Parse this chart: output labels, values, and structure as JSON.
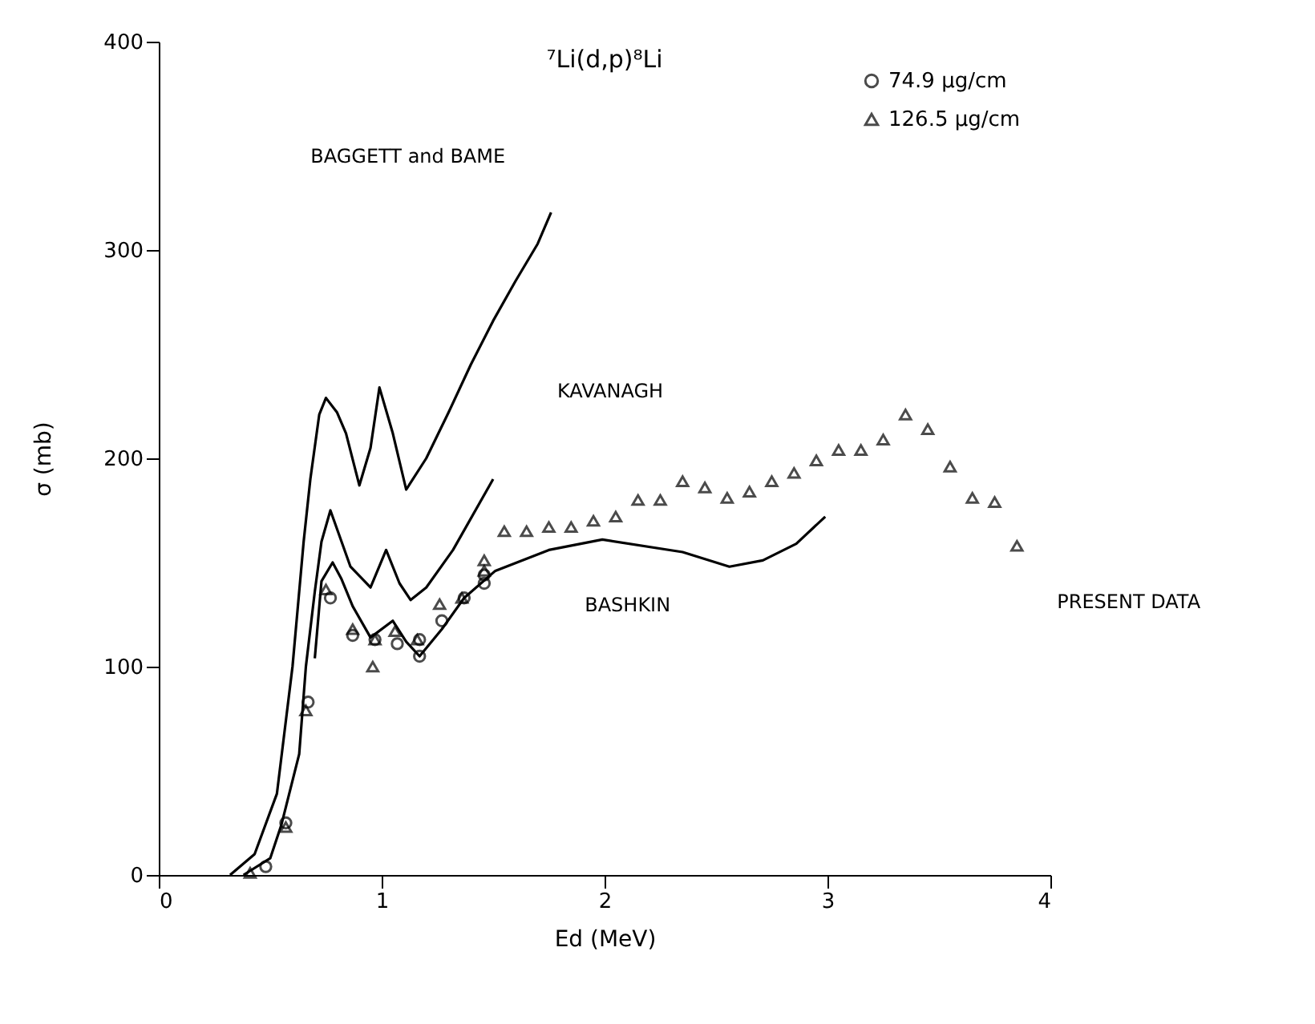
{
  "chart_data": {
    "type": "line",
    "title": "⁷Li(d,p)⁸Li",
    "xlabel": "Ed (MeV)",
    "ylabel": "σ (mb)",
    "xlim": [
      0,
      4
    ],
    "xticks": [
      0,
      1,
      2,
      3,
      4
    ],
    "ylim": [
      0,
      400
    ],
    "yticks": [
      0,
      100,
      200,
      300,
      400
    ],
    "grid": false,
    "legend": "top right",
    "series": [
      {
        "type": "line",
        "color": "#000000",
        "marker": "none",
        "x": [
          0.32,
          0.43,
          0.53,
          0.6,
          0.65,
          0.68,
          0.72,
          0.75,
          0.8,
          0.84,
          0.9,
          0.95,
          0.99,
          1.05,
          1.11,
          1.2,
          1.3,
          1.4,
          1.5,
          1.6,
          1.7,
          1.76
        ],
        "values": [
          0,
          10,
          39,
          100,
          160,
          190,
          221,
          229,
          222,
          212,
          187,
          205,
          234,
          212,
          185,
          200,
          222,
          245,
          266,
          285,
          303,
          318
        ]
      },
      {
        "type": "line",
        "color": "#000000",
        "marker": "none",
        "x": [
          0.38,
          0.5,
          0.55,
          0.63,
          0.66,
          0.7,
          0.73,
          0.77,
          0.82,
          0.86,
          0.95,
          1.02,
          1.08,
          1.13,
          1.2,
          1.32,
          1.5
        ],
        "values": [
          0,
          8,
          24,
          58,
          100,
          136,
          160,
          175,
          160,
          148,
          138,
          156,
          140,
          132,
          138,
          156,
          190
        ]
      },
      {
        "type": "line",
        "color": "#000000",
        "marker": "none",
        "x": [
          0.7,
          0.73,
          0.78,
          0.82,
          0.87,
          0.95,
          1.05,
          1.11,
          1.17,
          1.27,
          1.37,
          1.51,
          1.75,
          1.99,
          2.35,
          2.56,
          2.71,
          2.86,
          2.99
        ],
        "values": [
          104,
          141,
          150,
          142,
          129,
          114,
          122,
          112,
          105,
          118,
          133,
          146,
          156,
          161,
          155,
          148,
          151,
          159,
          172
        ]
      },
      {
        "type": "scatter",
        "name": "74.9 μg/cm",
        "color": "#000000",
        "marker": "circle",
        "x": [
          0.48,
          0.57,
          0.67,
          0.77,
          0.87,
          0.97,
          1.07,
          1.17,
          1.17,
          1.27,
          1.37,
          1.46,
          1.46
        ],
        "values": [
          4,
          25,
          83,
          133,
          115,
          113,
          111,
          105,
          113,
          122,
          133,
          140,
          144
        ]
      },
      {
        "type": "scatter",
        "name": "126.5 μg/cm",
        "color": "#000000",
        "marker": "triangle",
        "x": [
          0.41,
          0.57,
          0.66,
          0.75,
          0.87,
          0.96,
          0.97,
          1.06,
          1.16,
          1.26,
          1.36,
          1.46,
          1.46,
          1.55,
          1.65,
          1.75,
          1.85,
          1.95,
          2.05,
          2.15,
          2.25,
          2.35,
          2.45,
          2.55,
          2.65,
          2.75,
          2.85,
          2.95,
          3.05,
          3.15,
          3.25,
          3.35,
          3.45,
          3.55,
          3.65,
          3.75,
          3.85
        ],
        "values": [
          1,
          23,
          79,
          137,
          118,
          100,
          113,
          117,
          113,
          130,
          133,
          151,
          146,
          165,
          165,
          167,
          167,
          170,
          172,
          180,
          180,
          189,
          186,
          181,
          184,
          189,
          193,
          199,
          204,
          204,
          209,
          221,
          214,
          196,
          181,
          179,
          158
        ]
      }
    ],
    "annotations": [
      "BAGGETT and BAME",
      "KAVANAGH",
      "BASHKIN",
      "PRESENT DATA"
    ]
  }
}
